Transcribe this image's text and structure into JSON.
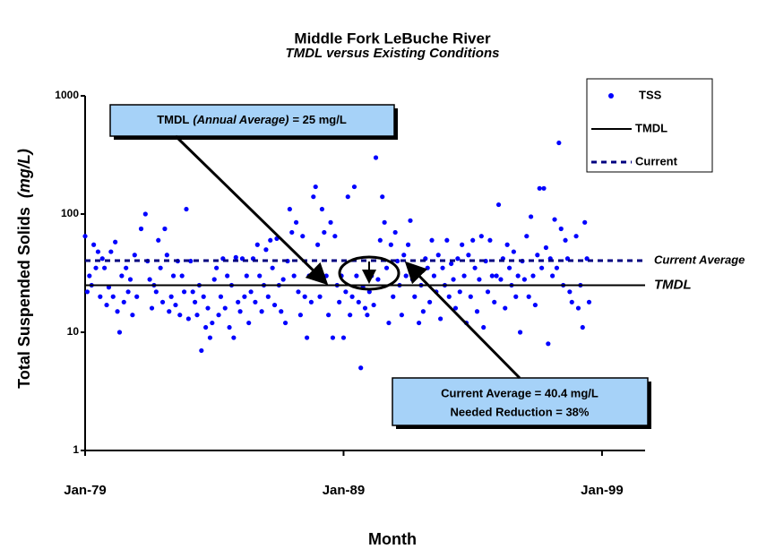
{
  "chart_data": {
    "type": "scatter",
    "title": "Middle Fork LeBuche River",
    "subtitle": "TMDL versus Existing Conditions",
    "x_label": "Month",
    "y_label": "Total Suspended Solids",
    "y_label_unit": "(mg/L)",
    "log_y": true,
    "legend": "upper right",
    "xlim": [
      "1979-01",
      "2000-09"
    ],
    "xticks": [
      {
        "value": "1979-01",
        "label": "Jan-79"
      },
      {
        "value": "1989-01",
        "label": "Jan-89"
      },
      {
        "value": "1999-01",
        "label": "Jan-99"
      }
    ],
    "ylim": [
      1,
      1000
    ],
    "yticks": [
      1,
      10,
      100,
      1000
    ],
    "annotations": {
      "tmdl_box": [
        "TMDL",
        "(Annual Average)",
        "= 25 mg/L"
      ],
      "current_box": [
        "Current Average = 40.4 mg/L",
        "Needed Reduction = 38%"
      ]
    },
    "series": [
      {
        "name": "TSS",
        "color": "#0000ff",
        "x": [
          "1979-01",
          "1979-02",
          "1979-03",
          "1979-04",
          "1979-05",
          "1979-06",
          "1979-07",
          "1979-08",
          "1979-09",
          "1979-10",
          "1979-11",
          "1979-12",
          "1980-01",
          "1980-02",
          "1980-03",
          "1980-04",
          "1980-05",
          "1980-06",
          "1980-07",
          "1980-08",
          "1980-09",
          "1980-10",
          "1980-11",
          "1980-12",
          "1981-01",
          "1981-03",
          "1981-05",
          "1981-06",
          "1981-07",
          "1981-08",
          "1981-09",
          "1981-10",
          "1981-11",
          "1981-12",
          "1982-01",
          "1982-02",
          "1982-03",
          "1982-04",
          "1982-05",
          "1982-06",
          "1982-07",
          "1982-08",
          "1982-09",
          "1982-10",
          "1982-11",
          "1982-12",
          "1983-01",
          "1983-02",
          "1983-03",
          "1983-04",
          "1983-05",
          "1983-06",
          "1983-07",
          "1983-08",
          "1983-09",
          "1983-10",
          "1983-11",
          "1983-12",
          "1984-01",
          "1984-02",
          "1984-03",
          "1984-04",
          "1984-05",
          "1984-06",
          "1984-07",
          "1984-08",
          "1984-09",
          "1984-10",
          "1984-11",
          "1984-12",
          "1985-01",
          "1985-02",
          "1985-03",
          "1985-04",
          "1985-05",
          "1985-06",
          "1985-07",
          "1985-08",
          "1985-09",
          "1985-10",
          "1985-11",
          "1985-12",
          "1986-01",
          "1986-02",
          "1986-03",
          "1986-04",
          "1986-05",
          "1986-06",
          "1986-07",
          "1986-08",
          "1986-09",
          "1986-10",
          "1986-11",
          "1986-12",
          "1987-01",
          "1987-02",
          "1987-03",
          "1987-04",
          "1987-05",
          "1987-06",
          "1987-07",
          "1987-08",
          "1987-09",
          "1987-10",
          "1987-11",
          "1987-12",
          "1988-01",
          "1988-02",
          "1988-03",
          "1988-04",
          "1988-05",
          "1988-06",
          "1988-07",
          "1988-08",
          "1988-09",
          "1988-10",
          "1988-11",
          "1988-12",
          "1989-01",
          "1989-02",
          "1989-03",
          "1989-04",
          "1989-05",
          "1989-06",
          "1989-07",
          "1989-08",
          "1989-09",
          "1989-10",
          "1989-11",
          "1989-12",
          "1990-01",
          "1990-02",
          "1990-03",
          "1990-04",
          "1990-05",
          "1990-06",
          "1990-07",
          "1990-08",
          "1990-09",
          "1990-10",
          "1990-11",
          "1990-12",
          "1991-01",
          "1991-02",
          "1991-03",
          "1991-04",
          "1991-05",
          "1991-06",
          "1991-07",
          "1991-08",
          "1991-09",
          "1991-10",
          "1991-11",
          "1991-12",
          "1992-01",
          "1992-02",
          "1992-03",
          "1992-04",
          "1992-05",
          "1992-06",
          "1992-07",
          "1992-08",
          "1992-09",
          "1992-10",
          "1992-11",
          "1992-12",
          "1993-01",
          "1993-02",
          "1993-03",
          "1993-04",
          "1993-05",
          "1993-06",
          "1993-07",
          "1993-08",
          "1993-09",
          "1993-10",
          "1993-11",
          "1993-12",
          "1994-01",
          "1994-02",
          "1994-03",
          "1994-04",
          "1994-05",
          "1994-06",
          "1994-07",
          "1994-08",
          "1994-09",
          "1994-10",
          "1994-11",
          "1994-12",
          "1995-01",
          "1995-02",
          "1995-03",
          "1995-04",
          "1995-05",
          "1995-06",
          "1995-07",
          "1995-08",
          "1995-09",
          "1995-10",
          "1995-11",
          "1995-12",
          "1996-01",
          "1996-02",
          "1996-03",
          "1996-04",
          "1996-05",
          "1996-06",
          "1996-07",
          "1996-08",
          "1996-09",
          "1996-10",
          "1996-11",
          "1996-12",
          "1997-01",
          "1997-02",
          "1997-03",
          "1997-04",
          "1997-05",
          "1997-06",
          "1997-07",
          "1997-08",
          "1997-09",
          "1997-10",
          "1997-11",
          "1998-01",
          "1998-02",
          "1998-03",
          "1998-04",
          "1998-05",
          "1998-06",
          "1998-07"
        ],
        "values": [
          65,
          22,
          30,
          25,
          55,
          35,
          48,
          20,
          42,
          35,
          17,
          24,
          48,
          20,
          58,
          15,
          10,
          30,
          18,
          35,
          22,
          28,
          14,
          45,
          20,
          75,
          100,
          40,
          28,
          16,
          25,
          22,
          60,
          35,
          18,
          75,
          45,
          15,
          20,
          30,
          17,
          40,
          14,
          30,
          22,
          110,
          13,
          40,
          22,
          18,
          14,
          25,
          7,
          20,
          11,
          16,
          9,
          12,
          28,
          35,
          14,
          20,
          42,
          16,
          30,
          11,
          25,
          9,
          43,
          18,
          15,
          42,
          20,
          30,
          12,
          22,
          42,
          18,
          55,
          30,
          15,
          25,
          50,
          20,
          60,
          35,
          17,
          62,
          25,
          15,
          28,
          12,
          40,
          110,
          70,
          30,
          85,
          22,
          14,
          65,
          20,
          9,
          30,
          18,
          140,
          170,
          55,
          20,
          110,
          70,
          30,
          14,
          85,
          9,
          65,
          25,
          18,
          30,
          9,
          22,
          140,
          14,
          20,
          170,
          30,
          18,
          5,
          24,
          16,
          14,
          22,
          30,
          17,
          300,
          28,
          60,
          140,
          85,
          35,
          12,
          55,
          20,
          70,
          40,
          25,
          14,
          45,
          30,
          55,
          88,
          28,
          20,
          35,
          12,
          25,
          15,
          42,
          35,
          18,
          60,
          30,
          22,
          45,
          13,
          35,
          25,
          60,
          20,
          38,
          28,
          16,
          42,
          22,
          55,
          30,
          12,
          45,
          20,
          60,
          35,
          15,
          28,
          65,
          11,
          40,
          22,
          60,
          30,
          18,
          30,
          120,
          28,
          42,
          16,
          55,
          35,
          25,
          48,
          20,
          30,
          10,
          40,
          28,
          65,
          20,
          95,
          30,
          17,
          45,
          165,
          35,
          165,
          52,
          8,
          42,
          30,
          90,
          35,
          400,
          75,
          25,
          60,
          42,
          22,
          18,
          65,
          16,
          25,
          11,
          85,
          42,
          18
        ]
      },
      {
        "name": "TMDL",
        "color": "#000000",
        "value": 25,
        "dashed": false,
        "label": "TMDL"
      },
      {
        "name": "Current",
        "color": "#000080",
        "value": 40.4,
        "dashed": true,
        "label": "Current Average"
      }
    ]
  }
}
